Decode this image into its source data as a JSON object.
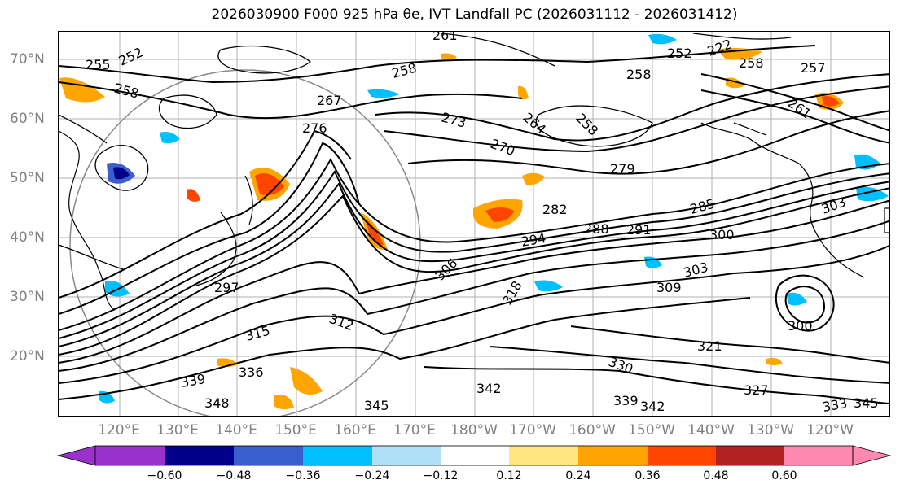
{
  "title": "2026030900 F000 925 hPa θe, IVT Landfall PC (2026031112 - 2026031412)",
  "map": {
    "lat_labels": [
      "70°N",
      "60°N",
      "50°N",
      "40°N",
      "30°N",
      "20°N"
    ],
    "lon_labels": [
      "120°E",
      "130°E",
      "140°E",
      "150°E",
      "160°E",
      "170°E",
      "180°W",
      "170°W",
      "160°W",
      "150°W",
      "140°W",
      "130°W",
      "120°W"
    ],
    "contour_labels": [
      "261",
      "255",
      "252",
      "258",
      "267",
      "258",
      "252",
      "222",
      "258",
      "257",
      "258",
      "273",
      "264",
      "258",
      "261",
      "279",
      "276",
      "270",
      "282",
      "285",
      "303",
      "288",
      "291",
      "300",
      "294",
      "306",
      "297",
      "309",
      "303",
      "300",
      "318",
      "312",
      "315",
      "321",
      "327",
      "339",
      "336",
      "330",
      "342",
      "345",
      "348",
      "339",
      "342",
      "333",
      "345"
    ],
    "colors": {
      "coastline": "#000000",
      "contour": "#000000",
      "gridline": "#808080"
    }
  },
  "colorbar": {
    "ticks": [
      "−0.60",
      "−0.48",
      "−0.36",
      "−0.24",
      "−0.12",
      "0.12",
      "0.24",
      "0.36",
      "0.48",
      "0.60"
    ],
    "colors": [
      "#9932cc",
      "#00008b",
      "#3a5fcd",
      "#00bfff",
      "#b0e0f8",
      "#ffffff",
      "#ffe680",
      "#ffa500",
      "#ff4500",
      "#b22222",
      "#ff88b0"
    ]
  }
}
